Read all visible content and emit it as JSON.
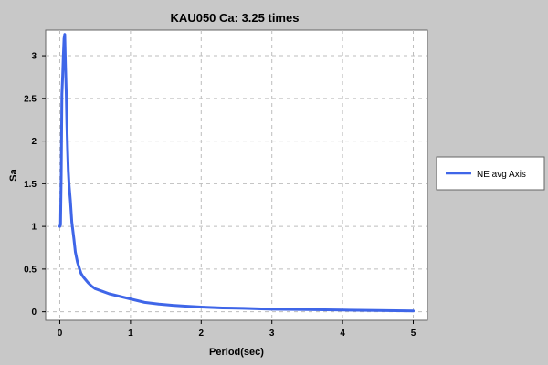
{
  "chart_data": {
    "type": "line",
    "title": "KAU050 Ca: 3.25 times",
    "xlabel": "Period(sec)",
    "ylabel": "Sa",
    "xlim": [
      -0.2,
      5.2
    ],
    "ylim": [
      -0.1,
      3.3
    ],
    "xticks": [
      0,
      1,
      2,
      3,
      4,
      5
    ],
    "yticks": [
      0,
      0.5,
      1,
      1.5,
      2,
      2.5,
      3
    ],
    "xtick_labels": [
      "0",
      "1",
      "2",
      "3",
      "4",
      "5"
    ],
    "ytick_labels": [
      "0",
      "0.5",
      "1",
      "1.5",
      "2",
      "2.5",
      "3"
    ],
    "grid": true,
    "legend_position": "right",
    "series": [
      {
        "name": "NE avg Axis",
        "color": "#3f66e8",
        "x": [
          0.0,
          0.01,
          0.02,
          0.03,
          0.04,
          0.05,
          0.06,
          0.07,
          0.08,
          0.09,
          0.1,
          0.11,
          0.12,
          0.13,
          0.15,
          0.17,
          0.2,
          0.22,
          0.25,
          0.28,
          0.3,
          0.33,
          0.36,
          0.4,
          0.45,
          0.5,
          0.6,
          0.7,
          0.8,
          0.9,
          1.0,
          1.1,
          1.2,
          1.4,
          1.6,
          1.8,
          2.0,
          2.3,
          2.6,
          3.0,
          3.5,
          4.0,
          4.5,
          5.0
        ],
        "y": [
          1.0,
          1.02,
          1.6,
          2.55,
          2.75,
          3.0,
          3.2,
          3.25,
          2.9,
          2.6,
          2.2,
          1.9,
          1.65,
          1.5,
          1.3,
          1.05,
          0.85,
          0.7,
          0.58,
          0.5,
          0.45,
          0.41,
          0.38,
          0.34,
          0.3,
          0.27,
          0.24,
          0.21,
          0.19,
          0.17,
          0.15,
          0.13,
          0.11,
          0.09,
          0.075,
          0.065,
          0.055,
          0.045,
          0.04,
          0.03,
          0.025,
          0.02,
          0.015,
          0.01
        ]
      }
    ]
  }
}
